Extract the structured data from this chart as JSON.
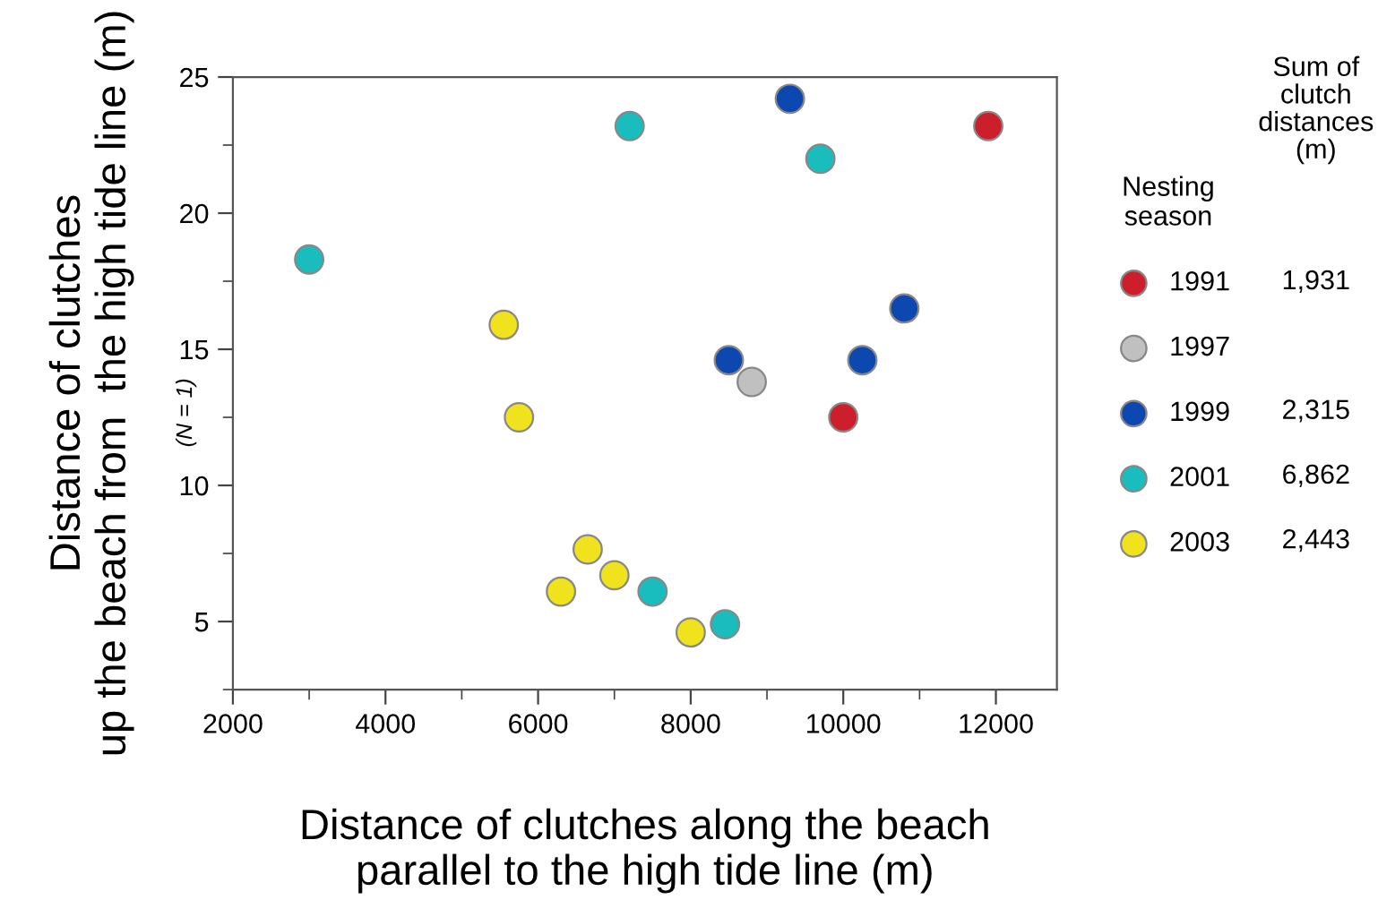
{
  "chart_data": {
    "type": "scatter",
    "xlabel": "Distance of clutches along the beach\nparallel to the high tide line (m)",
    "ylabel": "Distance of clutches\nup the beach from  the high tide line (m)",
    "legend_title": "Nesting\nseason",
    "annotations": [
      "(N = 1)",
      "Sum of\nclutch\ndistances\n(m)",
      "1,931",
      "2,315",
      "6,862",
      "2,443"
    ],
    "xlim": [
      2000,
      12800
    ],
    "xticks": [
      2000,
      4000,
      6000,
      8000,
      10000,
      12000
    ],
    "ylim": [
      2.5,
      25
    ],
    "yticks": [
      5,
      10,
      15,
      20,
      25
    ],
    "grid": false,
    "legend": "right",
    "marker": "circle",
    "series": [
      {
        "name": "1991",
        "color": "#cc1f2b",
        "x": [
          11900,
          10000
        ],
        "values": [
          23.2,
          12.5
        ]
      },
      {
        "name": "1997",
        "color": "#c0c0c0",
        "x": [
          8800
        ],
        "values": [
          13.8
        ]
      },
      {
        "name": "1999",
        "color": "#0d47b0",
        "x": [
          9300,
          8500,
          10250,
          10800
        ],
        "values": [
          24.2,
          14.6,
          14.6,
          16.5
        ]
      },
      {
        "name": "2001",
        "color": "#19bdbd",
        "x": [
          3000,
          7200,
          9700,
          7500,
          8450
        ],
        "values": [
          18.3,
          23.2,
          22.0,
          6.1,
          4.9
        ]
      },
      {
        "name": "2003",
        "color": "#f0e21c",
        "x": [
          5550,
          5750,
          6650,
          7000,
          6300,
          8000
        ],
        "values": [
          15.9,
          12.5,
          7.65,
          6.7,
          6.1,
          4.6
        ]
      }
    ]
  }
}
